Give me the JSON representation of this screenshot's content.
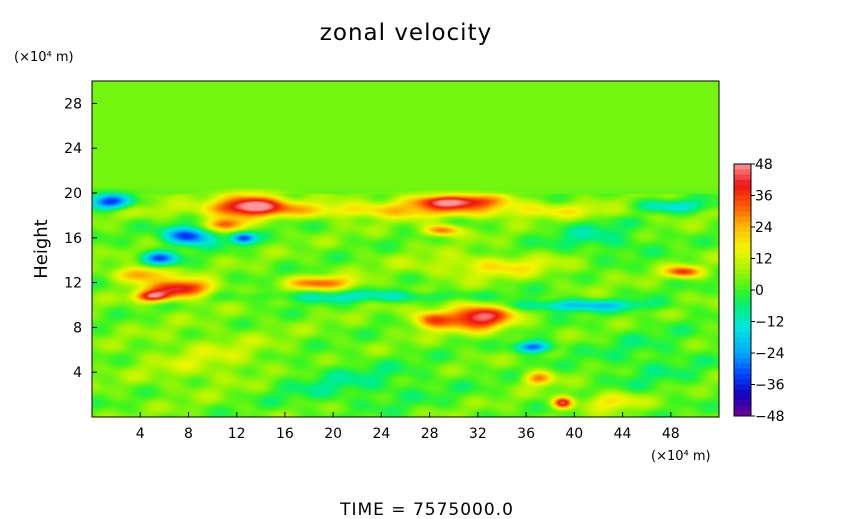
{
  "chart_data": {
    "type": "heatmap",
    "title": "zonal velocity",
    "ylabel": "Height",
    "xlabel": "",
    "x_units": "(×10⁴ m)",
    "y_units": "(×10⁴ m)",
    "footer": "TIME  =  7575000.0",
    "x_ticks": [
      "4",
      "8",
      "12",
      "16",
      "20",
      "24",
      "28",
      "32",
      "36",
      "40",
      "44",
      "48"
    ],
    "y_ticks": [
      "4",
      "8",
      "12",
      "16",
      "20",
      "24",
      "28"
    ],
    "xlim": [
      0,
      52
    ],
    "ylim": [
      0,
      30
    ],
    "colorbar": {
      "ticks": [
        "48",
        "36",
        "24",
        "12",
        "0",
        "-12",
        "-24",
        "-36",
        "-48"
      ],
      "range": [
        -48,
        48
      ]
    },
    "background_value": 3,
    "features": [
      {
        "x": 13,
        "y": 19,
        "rx": 2.8,
        "ry": 0.9,
        "value": 44
      },
      {
        "x": 11,
        "y": 17.2,
        "rx": 1.5,
        "ry": 0.6,
        "value": 30
      },
      {
        "x": 7.5,
        "y": 11.5,
        "rx": 2.5,
        "ry": 0.8,
        "value": 40
      },
      {
        "x": 5,
        "y": 10.8,
        "rx": 1.5,
        "ry": 0.5,
        "value": 38
      },
      {
        "x": 4,
        "y": 12.8,
        "rx": 2,
        "ry": 0.7,
        "value": 28
      },
      {
        "x": 8,
        "y": 16.2,
        "rx": 2,
        "ry": 0.8,
        "value": -40
      },
      {
        "x": 5.5,
        "y": 14.2,
        "rx": 1.5,
        "ry": 0.6,
        "value": -32
      },
      {
        "x": 1.5,
        "y": 19.2,
        "rx": 1.8,
        "ry": 0.7,
        "value": -36
      },
      {
        "x": 12.5,
        "y": 16,
        "rx": 1,
        "ry": 0.5,
        "value": -36
      },
      {
        "x": 30,
        "y": 19.3,
        "rx": 4,
        "ry": 0.6,
        "value": 38
      },
      {
        "x": 32,
        "y": 9,
        "rx": 2.8,
        "ry": 1.2,
        "value": 42
      },
      {
        "x": 28,
        "y": 8.7,
        "rx": 1.5,
        "ry": 0.8,
        "value": 28
      },
      {
        "x": 36.5,
        "y": 6.3,
        "rx": 1.5,
        "ry": 0.5,
        "value": -36
      },
      {
        "x": 39,
        "y": 1.3,
        "rx": 0.8,
        "ry": 0.5,
        "value": 40
      },
      {
        "x": 37,
        "y": 3.5,
        "rx": 1.2,
        "ry": 0.6,
        "value": 26
      },
      {
        "x": 43,
        "y": 1.5,
        "rx": 2.5,
        "ry": 0.8,
        "value": 16
      },
      {
        "x": 49,
        "y": 13,
        "rx": 1.5,
        "ry": 0.5,
        "value": 32
      },
      {
        "x": 29,
        "y": 16.7,
        "rx": 1.5,
        "ry": 0.5,
        "value": 30
      },
      {
        "x": 19,
        "y": 12,
        "rx": 3,
        "ry": 0.6,
        "value": 26
      },
      {
        "x": 23,
        "y": 10.8,
        "rx": 10,
        "ry": 0.5,
        "value": -14
      },
      {
        "x": 40,
        "y": 10,
        "rx": 6,
        "ry": 0.5,
        "value": -22
      },
      {
        "x": 26,
        "y": 18.5,
        "rx": 20,
        "ry": 0.7,
        "value": 18
      },
      {
        "x": 10,
        "y": 5,
        "rx": 6,
        "ry": 2.5,
        "value": 8
      },
      {
        "x": 21,
        "y": 3,
        "rx": 8,
        "ry": 2,
        "value": -8
      },
      {
        "x": 46,
        "y": 5,
        "rx": 5,
        "ry": 3,
        "value": -6
      },
      {
        "x": 42,
        "y": 16,
        "rx": 4,
        "ry": 1.5,
        "value": -10
      },
      {
        "x": 33,
        "y": 13.5,
        "rx": 6,
        "ry": 1,
        "value": 14
      },
      {
        "x": 48,
        "y": 18.8,
        "rx": 4,
        "ry": 0.6,
        "value": -18
      }
    ]
  }
}
